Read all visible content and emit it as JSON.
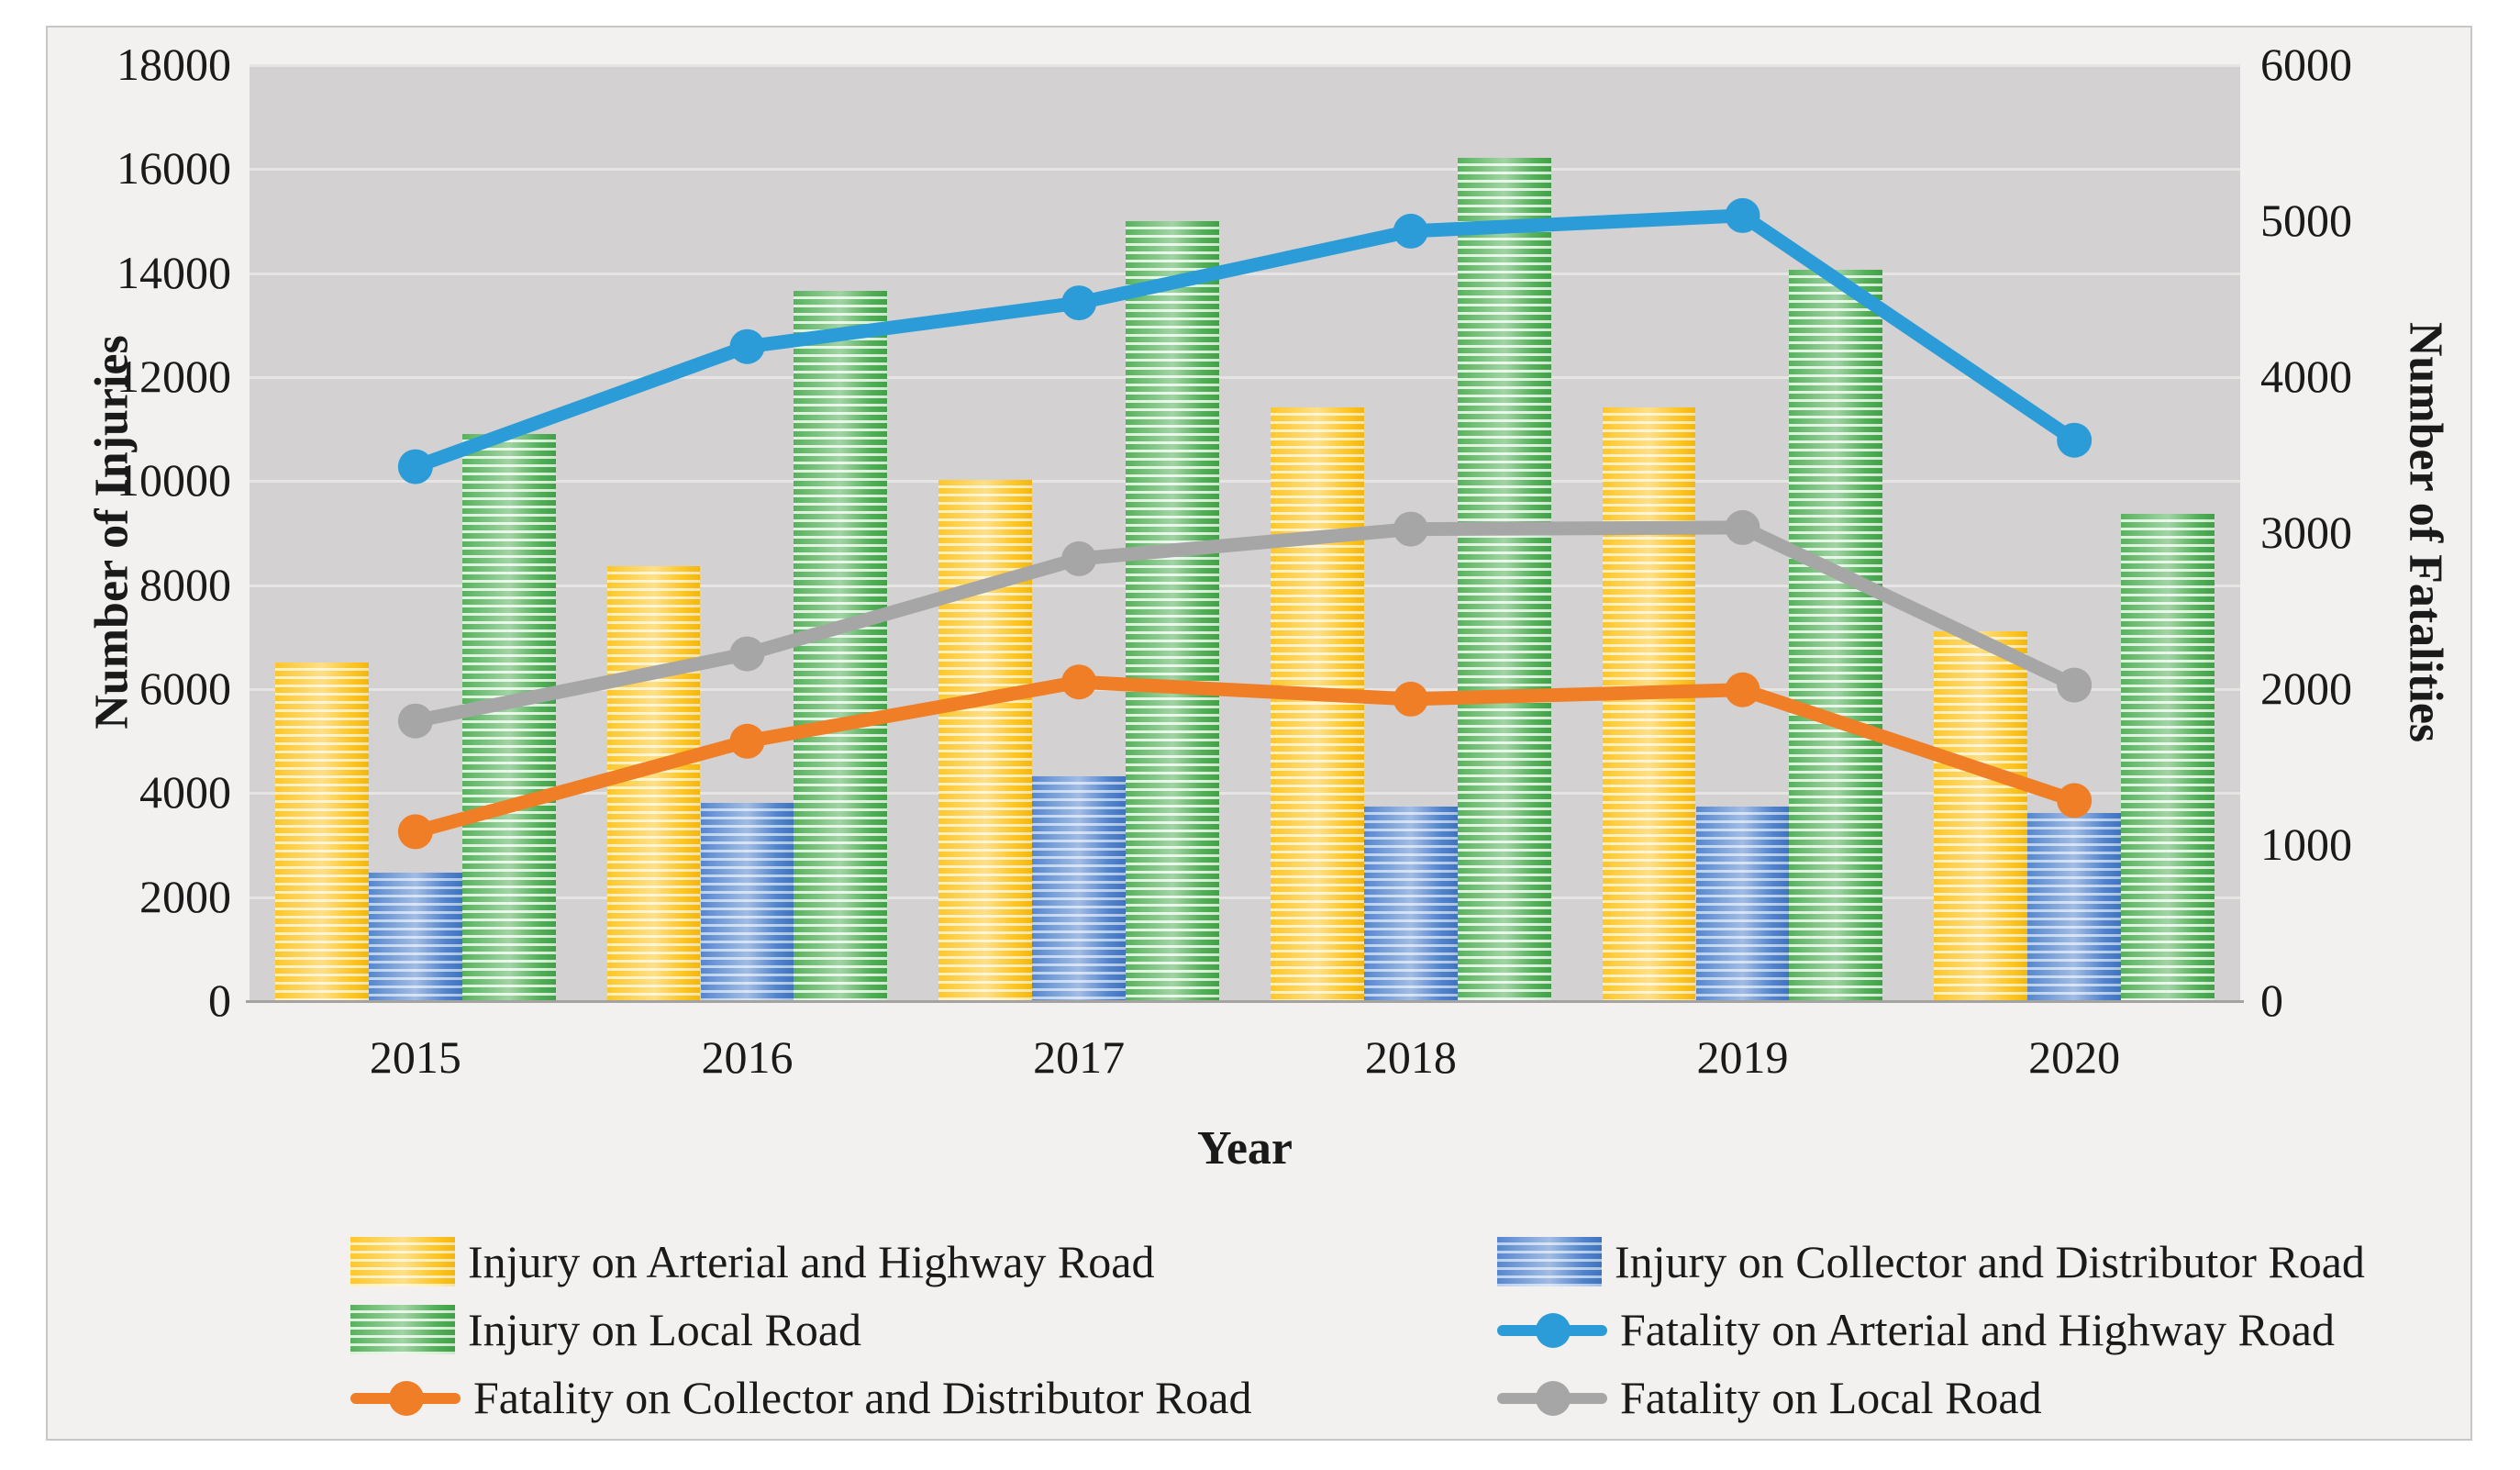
{
  "figure": {
    "kind": "combo bar and line chart",
    "background": "#FFFFFF",
    "panel_background": "#F2F1F0",
    "panel_border_color": "#C9C7C5",
    "plot_background": "#D3D1D1",
    "gridline_color": "#E7E5E4",
    "axis_line_color": "#A5A3A1"
  },
  "axes": {
    "y_left": {
      "title": "Number of Injuries",
      "min": 0,
      "max": 18000,
      "step": 2000,
      "ticks": [
        "18000",
        "16000",
        "14000",
        "12000",
        "10000",
        "8000",
        "6000",
        "4000",
        "2000",
        "0"
      ]
    },
    "y_right": {
      "title": "Number of Fatalities",
      "min": 0,
      "max": 6000,
      "step": 1000,
      "ticks": [
        "6000",
        "5000",
        "4000",
        "3000",
        "2000",
        "1000",
        "0"
      ]
    },
    "x": {
      "title": "Year",
      "categories": [
        "2015",
        "2016",
        "2017",
        "2018",
        "2019",
        "2020"
      ]
    }
  },
  "chart_data": {
    "type": "bar",
    "subtype": "grouped bars (left axis) with overlaid lines (right axis)",
    "categories": [
      "2015",
      "2016",
      "2017",
      "2018",
      "2019",
      "2020"
    ],
    "xlabel": "Year",
    "ylabel_left": "Number of Injuries",
    "ylabel_right": "Number of Fatalities",
    "ylim_left": [
      0,
      18000
    ],
    "ylim_right": [
      0,
      6000
    ],
    "grid": "horizontal gridlines every 2000 injuries",
    "legend_position": "bottom, two columns",
    "series": [
      {
        "name": "Injury on Arterial and Highway Road",
        "type": "bar",
        "axis": "left",
        "color": "#FFC010",
        "stripe": "#FFEDB3",
        "values": [
          6500,
          8350,
          10000,
          11400,
          11400,
          7100
        ]
      },
      {
        "name": "Injury on Collector and Distributor Road",
        "type": "bar",
        "axis": "left",
        "color": "#4379C9",
        "stripe": "#B3CBEA",
        "values": [
          2450,
          3800,
          4300,
          3720,
          3720,
          3600
        ]
      },
      {
        "name": "Injury on Local Road",
        "type": "bar",
        "axis": "left",
        "color": "#44A94A",
        "stripe": "#D8F0D9",
        "values": [
          10880,
          13650,
          14980,
          16200,
          14050,
          9350
        ]
      },
      {
        "name": "Fatality on Arterial and Highway Road",
        "type": "line",
        "axis": "right",
        "color": "#2B9CD8",
        "values": [
          3420,
          4190,
          4470,
          4930,
          5030,
          3590
        ]
      },
      {
        "name": "Fatality on Collector and Distributor Road",
        "type": "line",
        "axis": "right",
        "color": "#F07E26",
        "values": [
          1080,
          1660,
          2040,
          1930,
          1990,
          1280
        ]
      },
      {
        "name": "Fatality on Local Road",
        "type": "line",
        "axis": "right",
        "color": "#A6A6A6",
        "values": [
          1790,
          2220,
          2830,
          3020,
          3030,
          2020
        ]
      }
    ]
  },
  "legend": {
    "left_column_series": [
      0,
      2,
      4
    ],
    "right_column_series": [
      1,
      3,
      5
    ]
  }
}
